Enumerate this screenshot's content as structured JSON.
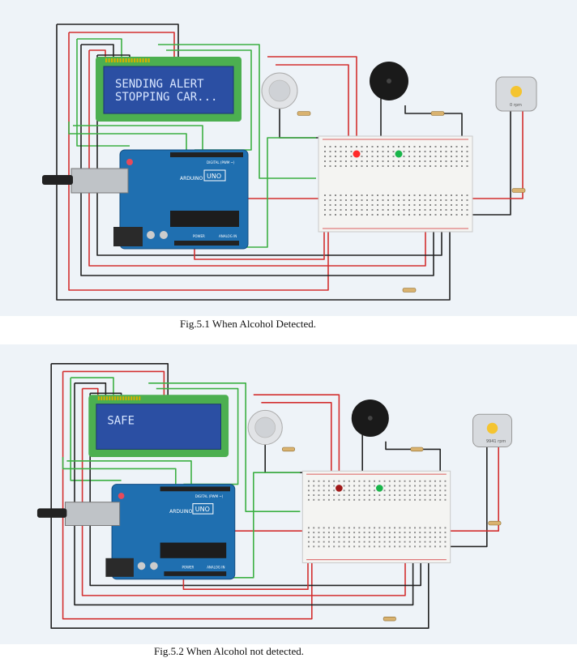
{
  "figures": [
    {
      "caption": "Fig.5.1 When Alcohol Detected.",
      "lcd_line1": "SENDING ALERT",
      "lcd_line2": "STOPPING CAR...",
      "motor_label": "0 rpm",
      "led_red_lit": true
    },
    {
      "caption": "Fig.5.2 When Alcohol not detected.",
      "lcd_line1": "SAFE",
      "lcd_line2": "",
      "motor_label": "9941 rpm",
      "led_red_lit": false
    }
  ],
  "board": {
    "brand": "ARDUINO",
    "model": "UNO",
    "digital_label": "DIGITAL (PWM ~)",
    "power_label": "POWER",
    "analog_label": "ANALOG IN"
  },
  "colors": {
    "background": "#eef3f8",
    "arduino": "#1f6fb0",
    "lcd_bezel": "#4caf50",
    "lcd_screen": "#2b4fa3",
    "wire_red": "#d32f2f",
    "wire_green": "#3cb043",
    "wire_black": "#222222"
  }
}
